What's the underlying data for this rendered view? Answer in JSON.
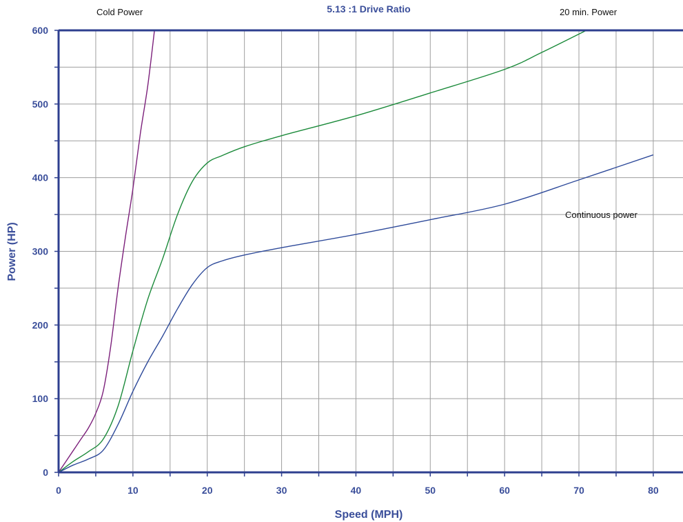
{
  "chart_data": {
    "type": "line",
    "title": "5.13 :1 Drive Ratio",
    "xlabel": "Speed  (MPH)",
    "ylabel": "Power  (HP)",
    "xlim": [
      0,
      84
    ],
    "ylim": [
      0,
      600
    ],
    "xticks": [
      0,
      10,
      20,
      30,
      40,
      50,
      60,
      70,
      80
    ],
    "yticks": [
      0,
      100,
      200,
      300,
      400,
      500,
      600
    ],
    "grid": true,
    "legend": "none",
    "colors": {
      "axis": "#2e3f8f",
      "text": "#3a4e9a",
      "grid": "#9e9e9e"
    },
    "annotations": [
      {
        "text": "Cold Power",
        "series": "Cold Power"
      },
      {
        "text": "20 min. Power",
        "series": "20 min. Power"
      },
      {
        "text": "Continuous power",
        "series": "Continuous power"
      }
    ],
    "series": [
      {
        "name": "Cold Power",
        "color": "#7b1f7a",
        "x": [
          0,
          1,
          2,
          3,
          4,
          5,
          6,
          7,
          8,
          9,
          10,
          11,
          12,
          12.9
        ],
        "y": [
          0,
          15,
          30,
          45,
          60,
          80,
          110,
          170,
          250,
          320,
          385,
          460,
          525,
          600
        ]
      },
      {
        "name": "20 min. Power",
        "color": "#1b8a3a",
        "x": [
          0,
          2,
          4,
          6,
          8,
          10,
          12,
          14,
          16,
          18,
          20,
          22,
          25,
          30,
          40,
          50,
          60,
          65,
          71
        ],
        "y": [
          0,
          15,
          28,
          45,
          90,
          165,
          235,
          290,
          350,
          395,
          420,
          430,
          442,
          457,
          484,
          515,
          547,
          570,
          600
        ]
      },
      {
        "name": "Continuous power",
        "color": "#2e4a9a",
        "x": [
          0,
          2,
          4,
          6,
          8,
          10,
          12,
          14,
          16,
          18,
          20,
          22,
          25,
          30,
          40,
          50,
          60,
          70,
          80
        ],
        "y": [
          0,
          10,
          18,
          30,
          65,
          110,
          150,
          185,
          222,
          255,
          278,
          287,
          295,
          305,
          323,
          343,
          364,
          397,
          431
        ]
      }
    ]
  }
}
